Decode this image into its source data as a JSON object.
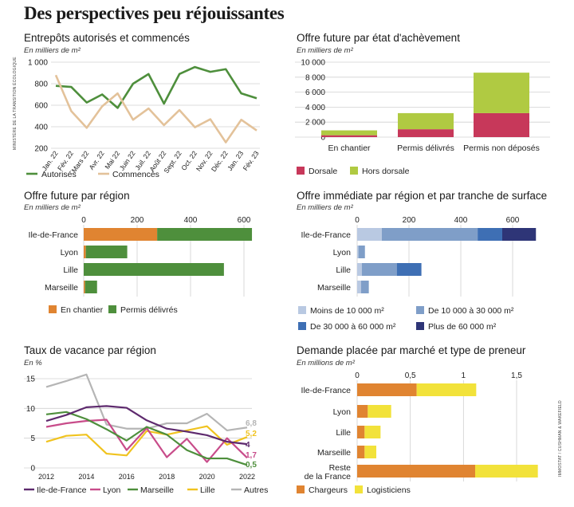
{
  "page": {
    "title": "Des perspectives peu réjouissantes"
  },
  "sources": {
    "left": "MINISTÈRE DE LA TRANSITION ÉCOLOGIQUE",
    "right": "IMMOSTAT / CUSHMAN & WAKEFIELD"
  },
  "colors": {
    "green": "#4e8f3c",
    "tan": "#e3c29a",
    "crimson": "#c7385a",
    "lime": "#b0ca42",
    "orange": "#e08431",
    "light_blue": "#b9c9e2",
    "mid_blue": "#7f9ec8",
    "blue": "#3e6fb4",
    "navy": "#2e3577",
    "yellow": "#f2e23a",
    "purple": "#5e2a6e",
    "pink": "#c84c8a",
    "dark_green": "#4e8f3c",
    "gold": "#f0c31f",
    "grey": "#b5b5b5"
  },
  "chart_data": [
    {
      "id": "entrepots",
      "type": "line",
      "title": "Entrepôts autorisés et commencés",
      "unit": "En milliers de m²",
      "categories": [
        "Jan. 22",
        "Fév. 22",
        "Mars 22",
        "Avr. 22",
        "Mai 22",
        "Juin 22",
        "Juil. 22",
        "Août 22",
        "Sept. 22",
        "Oct. 22",
        "Nov. 22",
        "Déc. 22",
        "Jan. 23",
        "Fév. 23"
      ],
      "series": [
        {
          "name": "Autorisés",
          "values": [
            780,
            770,
            625,
            700,
            575,
            800,
            890,
            615,
            890,
            955,
            910,
            935,
            710,
            665
          ]
        },
        {
          "name": "Commencés",
          "values": [
            880,
            545,
            390,
            590,
            710,
            465,
            570,
            415,
            555,
            395,
            470,
            255,
            465,
            365
          ]
        }
      ],
      "yticks": [
        "1 000",
        "800",
        "600",
        "400",
        "200"
      ],
      "ylim": [
        200,
        1000
      ]
    },
    {
      "id": "offre-future-achevement",
      "type": "bar",
      "title": "Offre future par état d'achèvement",
      "unit": "En milliers de m²",
      "categories": [
        "En chantier",
        "Permis délivrés",
        "Permis non déposés"
      ],
      "series": [
        {
          "name": "Dorsale",
          "values": [
            250,
            1050,
            3200
          ]
        },
        {
          "name": "Hors dorsale",
          "values": [
            650,
            2150,
            5400
          ]
        }
      ],
      "yticks": [
        "10 000",
        "8 000",
        "6 000",
        "4 000",
        "2 000",
        "0"
      ],
      "ylim": [
        0,
        10000
      ]
    },
    {
      "id": "offre-future-region",
      "type": "bar",
      "title": "Offre future par région",
      "unit": "En milliers de m²",
      "categories": [
        "Ile-de-France",
        "Lyon",
        "Lille",
        "Marseille"
      ],
      "series": [
        {
          "name": "En chantier",
          "values": [
            275,
            8,
            0,
            5
          ]
        },
        {
          "name": "Permis délivrés",
          "values": [
            355,
            155,
            525,
            45
          ]
        }
      ],
      "xticks": [
        "0",
        "200",
        "400",
        "600"
      ],
      "xlim": [
        0,
        600
      ]
    },
    {
      "id": "offre-immediate",
      "type": "bar",
      "title": "Offre immédiate par région et par tranche de surface",
      "unit": "En milliers de m²",
      "categories": [
        "Ile-de-France",
        "Lyon",
        "Lille",
        "Marseille"
      ],
      "series": [
        {
          "name": "Moins de 10 000 m²",
          "values": [
            95,
            5,
            18,
            15
          ]
        },
        {
          "name": "De 10 000 à 30 000 m²",
          "values": [
            370,
            25,
            135,
            30
          ]
        },
        {
          "name": "De 30 000 à 60 000 m²",
          "values": [
            95,
            0,
            95,
            0
          ]
        },
        {
          "name": "Plus de 60 000 m²",
          "values": [
            130,
            0,
            0,
            0
          ]
        }
      ],
      "xticks": [
        "0",
        "200",
        "400",
        "600"
      ],
      "xlim": [
        0,
        600
      ]
    },
    {
      "id": "taux-vacance",
      "type": "line",
      "title": "Taux de vacance par région",
      "unit": "En %",
      "x": [
        2012,
        2013,
        2014,
        2015,
        2016,
        2017,
        2018,
        2019,
        2020,
        2021,
        2022
      ],
      "xticks": [
        "2012",
        "2014",
        "2016",
        "2018",
        "2020",
        "2022"
      ],
      "series": [
        {
          "name": "Ile-de-France",
          "values": [
            7.9,
            8.9,
            10.2,
            10.4,
            10.1,
            8.0,
            6.6,
            6.1,
            5.5,
            4.4,
            4.0
          ],
          "end_label": "4"
        },
        {
          "name": "Lyon",
          "values": [
            6.9,
            7.5,
            7.9,
            8.1,
            3.0,
            6.7,
            1.8,
            4.9,
            1.0,
            5.0,
            1.7
          ],
          "end_label": "1,7"
        },
        {
          "name": "Marseille",
          "values": [
            9.0,
            9.4,
            8.2,
            6.5,
            4.6,
            6.9,
            5.6,
            3.0,
            1.6,
            1.6,
            0.5
          ],
          "end_label": "0,5"
        },
        {
          "name": "Lille",
          "values": [
            4.4,
            5.4,
            5.6,
            2.4,
            2.1,
            6.2,
            5.6,
            6.3,
            7.0,
            3.9,
            5.2
          ],
          "end_label": "5,2"
        },
        {
          "name": "Autres",
          "values": [
            13.6,
            14.6,
            15.7,
            7.3,
            6.6,
            6.6,
            7.5,
            7.5,
            9.1,
            6.3,
            6.8
          ],
          "end_label": "6,8"
        }
      ],
      "yticks": [
        "15",
        "10",
        "5",
        "0"
      ],
      "ylim": [
        0,
        15
      ]
    },
    {
      "id": "demande-placee",
      "type": "bar",
      "title": "Demande placée par marché et type de preneur",
      "unit": "En millions de m²",
      "categories": [
        "Ile-de-France",
        "Lyon",
        "Lille",
        "Marseille",
        "Reste de la France"
      ],
      "series": [
        {
          "name": "Chargeurs",
          "values": [
            0.56,
            0.1,
            0.07,
            0.07,
            1.11
          ]
        },
        {
          "name": "Logisticiens",
          "values": [
            0.56,
            0.22,
            0.15,
            0.11,
            0.59
          ]
        }
      ],
      "xticks": [
        "0",
        "0,5",
        "1",
        "1,5"
      ],
      "xlim": [
        0,
        1.5
      ]
    }
  ]
}
